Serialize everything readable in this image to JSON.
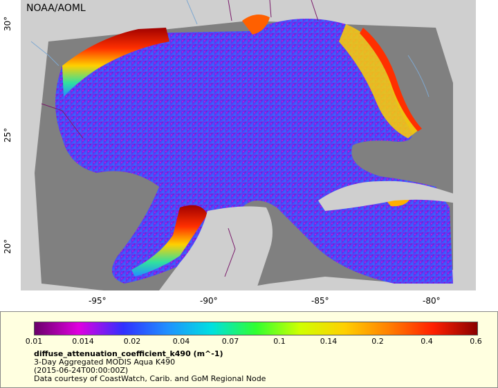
{
  "map": {
    "credit": "NOAA/AOML",
    "lat_ticks": [
      "30°",
      "25°",
      "20°"
    ],
    "lon_ticks": [
      "-95°",
      "-90°",
      "-85°",
      "-80°"
    ],
    "colors": {
      "land": "#cfcfcf",
      "nodata": "#808080",
      "border": "#7a1a6a",
      "river": "#7fa8d0"
    }
  },
  "legend": {
    "colorbar_ticks": [
      "0.01",
      "0.014",
      "0.02",
      "0.04",
      "0.07",
      "0.1",
      "0.14",
      "0.2",
      "0.4",
      "0.6"
    ],
    "variable": "diffuse_attenuation_coefficient_k490 (m^-1)",
    "line1": "3-Day Aggregated MODIS Aqua K490",
    "line2": "(2015-06-24T00:00:00Z)",
    "line3": "Data courtesy of CoastWatch, Carib. and GoM Regional Node",
    "colormap": [
      "#6a006a",
      "#e000e0",
      "#3030ff",
      "#2090ff",
      "#00e0e0",
      "#30ff30",
      "#d0ff00",
      "#ffd000",
      "#ff8000",
      "#ff2000",
      "#8a0000"
    ]
  }
}
